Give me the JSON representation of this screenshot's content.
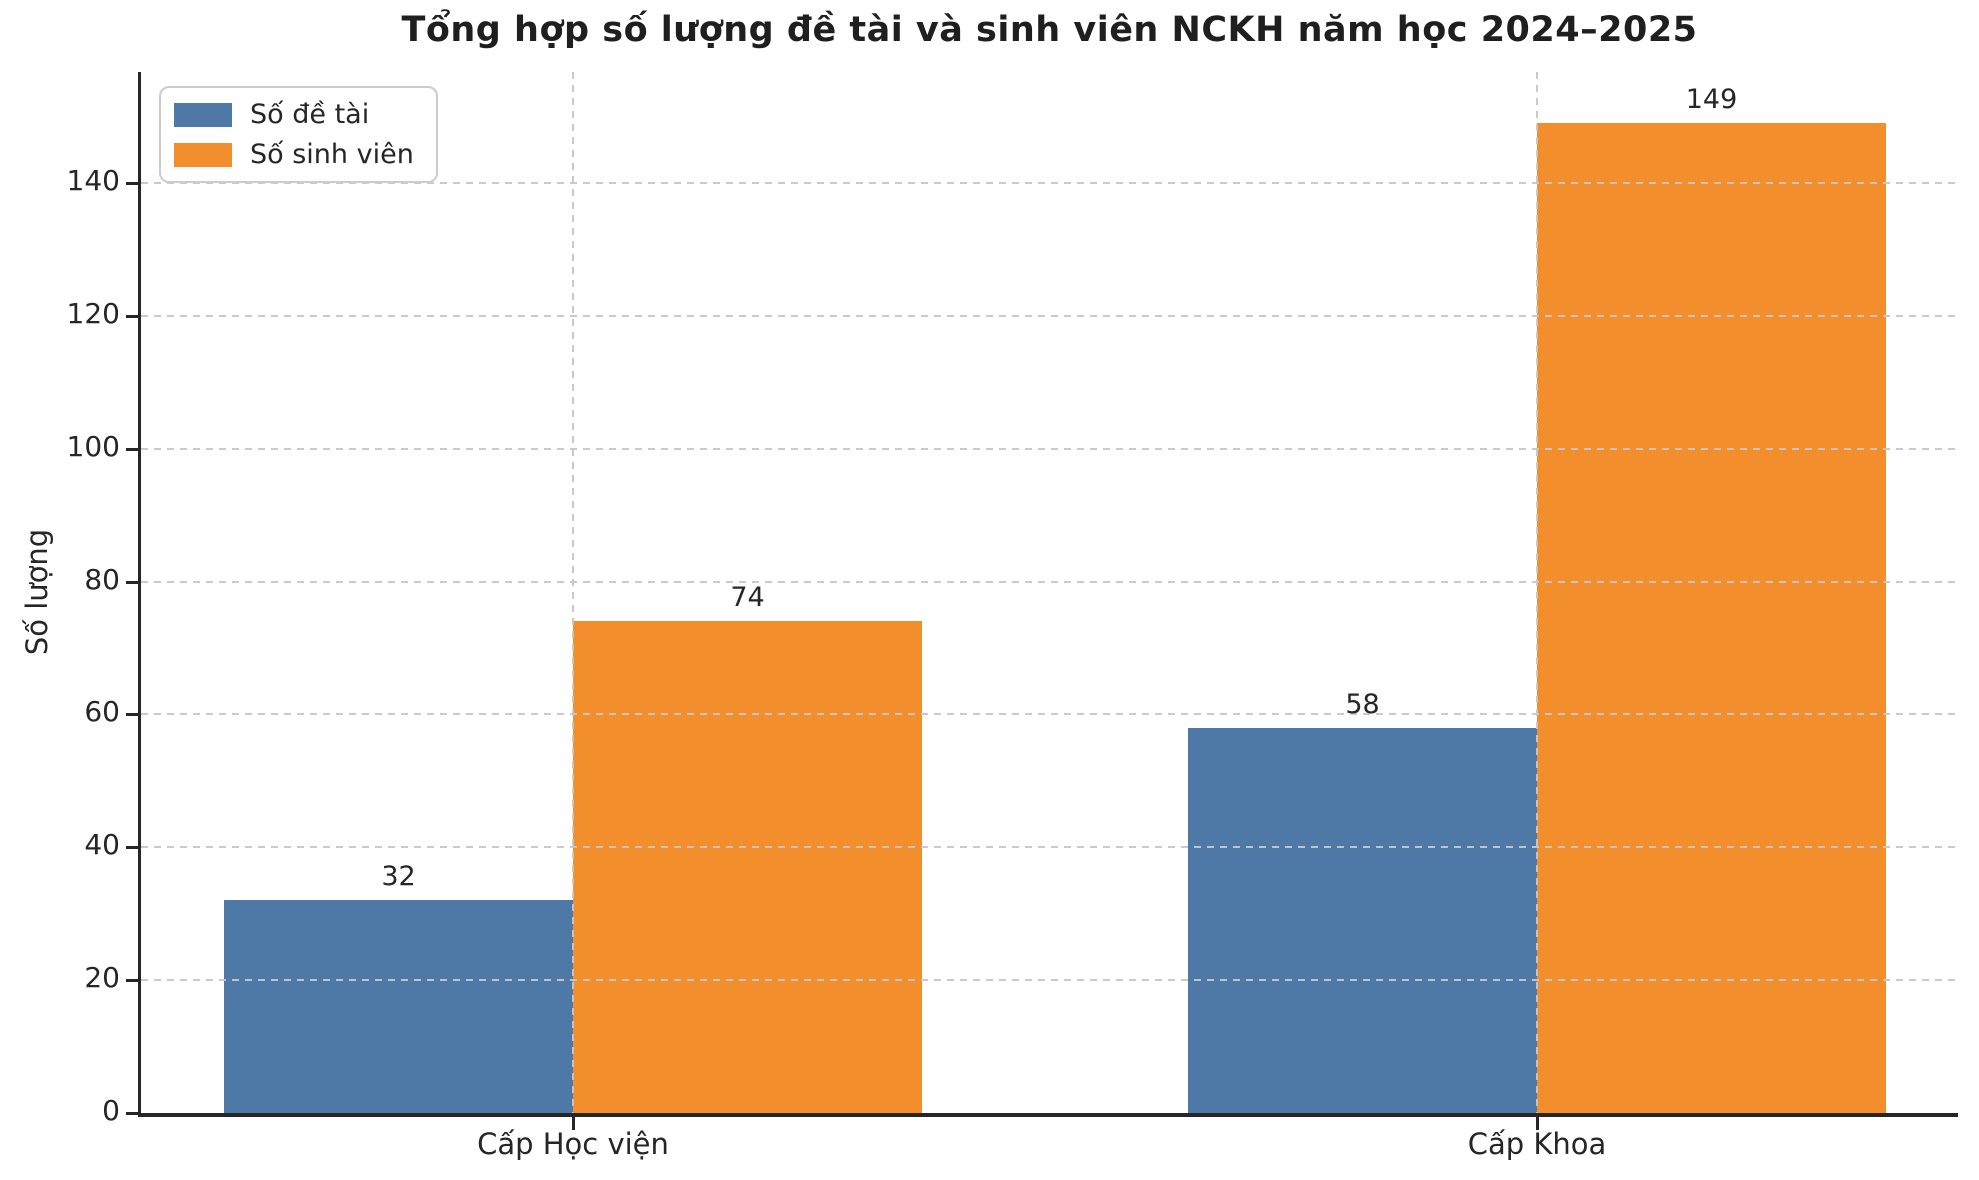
{
  "chart_data": {
    "type": "bar",
    "title": "Tổng hợp số lượng đề tài và sinh viên NCKH năm học 2024–2025",
    "ylabel": "Số lượng",
    "xlabel": "",
    "categories": [
      "Cấp Học viện",
      "Cấp Khoa"
    ],
    "series": [
      {
        "name": "Số đề tài",
        "color": "#4e79a7",
        "values": [
          32,
          58
        ]
      },
      {
        "name": "Số sinh viên",
        "color": "#f28e2b",
        "values": [
          74,
          149
        ]
      }
    ],
    "yticks": [
      0,
      20,
      40,
      60,
      80,
      100,
      120,
      140
    ],
    "ylim": [
      0,
      156.7
    ],
    "grid": true,
    "grid_style": "dashed",
    "legend_position": "upper left",
    "value_labels_shown": true,
    "colors": {
      "series_blue": "#4e79a7",
      "series_orange": "#f28e2b",
      "grid": "#c7c7c7",
      "text": "#262626"
    }
  }
}
